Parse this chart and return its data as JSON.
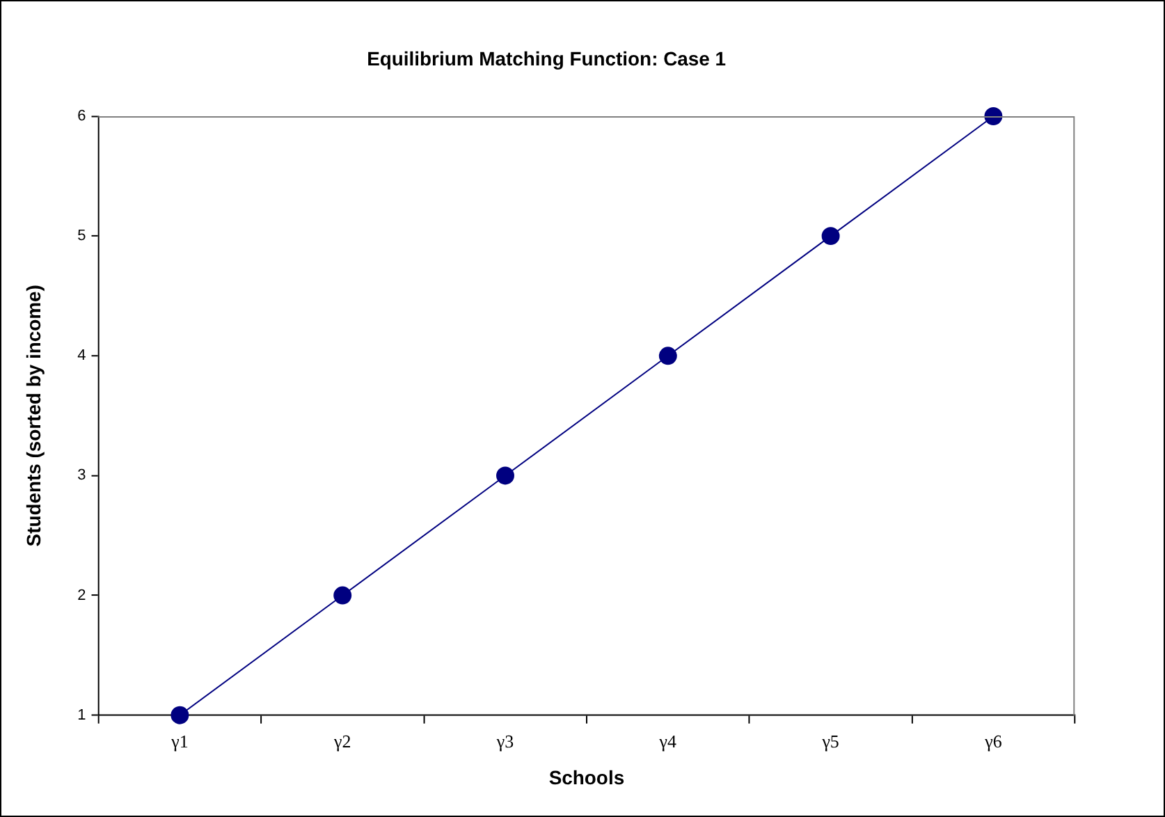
{
  "chart_data": {
    "type": "line",
    "title": "Equilibrium Matching Function: Case 1",
    "xlabel": "Schools",
    "ylabel": "Students (sorted by income)",
    "categories": [
      "γ1",
      "γ2",
      "γ3",
      "γ4",
      "γ5",
      "γ6"
    ],
    "series": [
      {
        "color": "#000080",
        "values": [
          1,
          2,
          3,
          4,
          5,
          6
        ]
      }
    ],
    "ylim": [
      1,
      6
    ],
    "yticks": [
      1,
      2,
      3,
      4,
      5,
      6
    ],
    "grid": false,
    "legend": false,
    "marker": "circle",
    "line_style": "solid"
  }
}
